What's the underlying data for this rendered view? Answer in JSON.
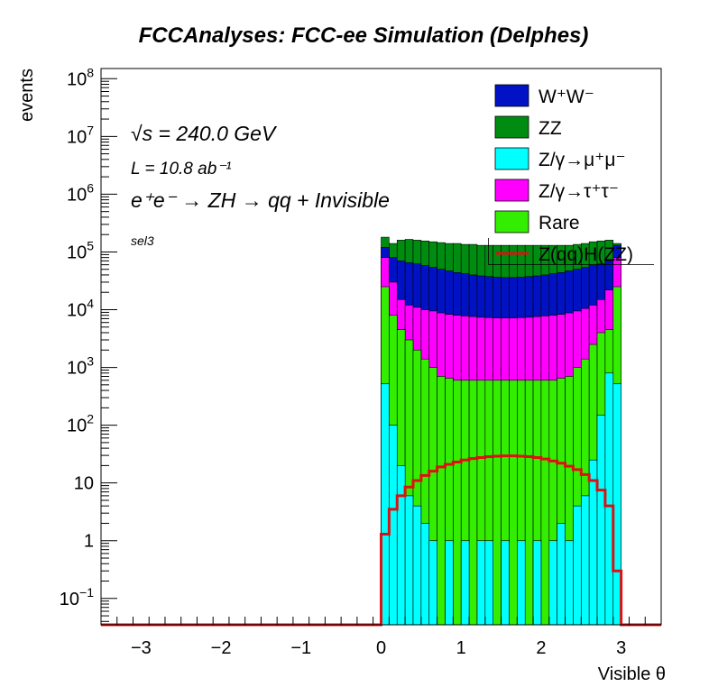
{
  "chart_data": {
    "type": "area",
    "title": "FCCAnalyses: FCC-ee Simulation (Delphes)",
    "xlabel": "Visible θ",
    "ylabel": "events",
    "xlim": [
      -3.5,
      3.5
    ],
    "ylim": [
      0.035,
      150000000
    ],
    "log_y": true,
    "grid": false,
    "legend_position": "top-right",
    "x_ticks": [
      "−3",
      "−2",
      "−1",
      "0",
      "1",
      "2",
      "3"
    ],
    "y_ticks": [
      {
        "mantissa": "10",
        "exp": "−1"
      },
      {
        "mantissa": "1",
        "exp": ""
      },
      {
        "mantissa": "10",
        "exp": ""
      },
      {
        "mantissa": "10",
        "exp": "2"
      },
      {
        "mantissa": "10",
        "exp": "3"
      },
      {
        "mantissa": "10",
        "exp": "4"
      },
      {
        "mantissa": "10",
        "exp": "5"
      },
      {
        "mantissa": "10",
        "exp": "6"
      },
      {
        "mantissa": "10",
        "exp": "7"
      },
      {
        "mantissa": "10",
        "exp": "8"
      }
    ],
    "annotations": {
      "sqrt_s": "√s = 240.0 GeV",
      "lumi": "L = 10.8 ab⁻¹",
      "process": "e⁺e⁻ → ZH → qq + Invisible",
      "selection": "sel3"
    },
    "bin_edges_start": 0,
    "bin_width": 0.1,
    "stack_order": [
      "Z/γ→μ⁺μ⁻",
      "Rare",
      "Z/γ→τ⁺τ⁻",
      "W⁺W⁻",
      "ZZ"
    ],
    "series": [
      {
        "name": "W⁺W⁻",
        "label": "W⁺W⁻",
        "color": "#0012c4",
        "style": "stacked-fill"
      },
      {
        "name": "ZZ",
        "label": "ZZ",
        "color": "#008c10",
        "style": "stacked-fill"
      },
      {
        "name": "Z/γ→μ⁺μ⁻",
        "label": "Z/γ→μ⁺μ⁻",
        "color": "#00ffff",
        "style": "stacked-fill"
      },
      {
        "name": "Z/γ→τ⁺τ⁻",
        "label": "Z/γ→τ⁺τ⁻",
        "color": "#ff00ff",
        "style": "stacked-fill"
      },
      {
        "name": "Rare",
        "label": "Rare",
        "color": "#33ee00",
        "style": "stacked-fill"
      },
      {
        "name": "Z(qq)H(ZZ)",
        "label": "Z(qq)H(ZZ)",
        "color": "#dd1111",
        "style": "line"
      }
    ],
    "stack_totals": {
      "muon": [
        520,
        100,
        20,
        6,
        4,
        2,
        1,
        0,
        1,
        0,
        1,
        0,
        1,
        1,
        0,
        1,
        0,
        1,
        0,
        1,
        0,
        1,
        2,
        1,
        4,
        6,
        25,
        150,
        800,
        520,
        0
      ],
      "rare": [
        25000,
        8000,
        4500,
        3000,
        2000,
        1400,
        1000,
        700,
        650,
        600,
        600,
        600,
        600,
        600,
        600,
        600,
        600,
        600,
        600,
        600,
        600,
        600,
        650,
        700,
        1000,
        1400,
        2500,
        4000,
        4500,
        25000,
        0
      ],
      "tau": [
        80000,
        30000,
        15000,
        12000,
        11000,
        10000,
        9500,
        8800,
        8300,
        8000,
        7800,
        7600,
        7400,
        7300,
        7200,
        7200,
        7200,
        7300,
        7400,
        7600,
        7800,
        8000,
        8300,
        8800,
        9500,
        10500,
        12000,
        15000,
        22000,
        80000,
        0
      ],
      "ww": [
        120000,
        80000,
        70000,
        65000,
        62000,
        58000,
        54000,
        50000,
        47000,
        44000,
        42000,
        40000,
        38500,
        37500,
        36500,
        36000,
        36000,
        36500,
        37500,
        38500,
        40000,
        42000,
        44000,
        47000,
        50000,
        54000,
        58000,
        62000,
        70000,
        130000,
        0
      ],
      "zz": [
        180000,
        140000,
        160000,
        165000,
        160000,
        155000,
        150000,
        145000,
        140000,
        140000,
        135000,
        135000,
        130000,
        130000,
        130000,
        130000,
        130000,
        130000,
        130000,
        130000,
        130000,
        130000,
        130000,
        130000,
        135000,
        140000,
        150000,
        155000,
        160000,
        140000,
        0
      ]
    },
    "signal_values": [
      1.3,
      3.5,
      6,
      8.5,
      11,
      13.5,
      16,
      19,
      21,
      23,
      25,
      26.5,
      27.5,
      28.5,
      29,
      29.5,
      29.5,
      29,
      28.5,
      27.5,
      26,
      24,
      22,
      19.5,
      17,
      14,
      11,
      7.5,
      4,
      0.3,
      0
    ]
  }
}
